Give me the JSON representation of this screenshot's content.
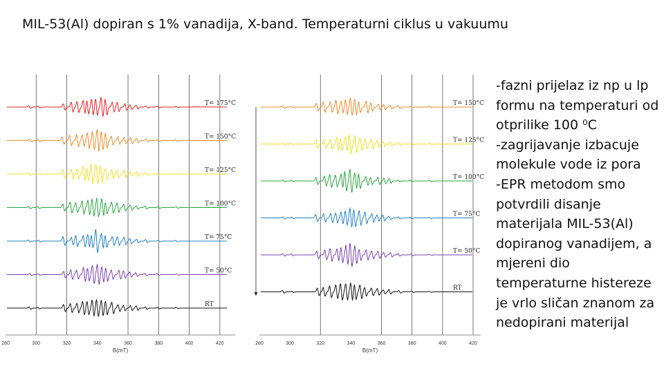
{
  "title": "MIL-53(Al) dopiran s 1% vanadija, X-band. Temperaturni ciklus u vakuumu",
  "bullets": [
    "-fazni prijelaz iz np u lp formu na temperaturi od otprilike 100 ⁰C",
    "-zagrijavanje izbacuje molekule vode iz pora",
    "-EPR metodom smo potvrdili disanje materijala MIL-53(Al) dopiranog vanadijem, a mjereni dio temperaturne histereze je vrlo sličan znanom za nedopirani materijal"
  ],
  "chart_data": [
    {
      "type": "line",
      "xlabel": "B(mT)",
      "xlim": [
        280,
        430
      ],
      "xticks": [
        "280",
        "300",
        "320",
        "340",
        "360",
        "380",
        "400",
        "420"
      ],
      "vertical_gridlines_at": [
        300,
        320,
        360,
        380,
        400,
        420
      ],
      "arrow": "up",
      "series": [
        {
          "name": "T= 175°C",
          "color": "#e02020"
        },
        {
          "name": "T= 150°C",
          "color": "#ef8a2a"
        },
        {
          "name": "T= 125°C",
          "color": "#f0e020"
        },
        {
          "name": "T= 100°C",
          "color": "#27a640"
        },
        {
          "name": "T= 75°C",
          "color": "#2080c0"
        },
        {
          "name": "T= 50°C",
          "color": "#7a3fb0"
        },
        {
          "name": "RT",
          "color": "#111111"
        }
      ]
    },
    {
      "type": "line",
      "xlabel": "B(mT)",
      "xlim": [
        280,
        425
      ],
      "xticks": [
        "280",
        "300",
        "320",
        "340",
        "360",
        "380",
        "400",
        "420"
      ],
      "vertical_gridlines_at": [
        320,
        360,
        380,
        400,
        420
      ],
      "arrow": "down",
      "series": [
        {
          "name": "T= 150°C",
          "color": "#ef8a2a"
        },
        {
          "name": "T= 125°C",
          "color": "#f0e020"
        },
        {
          "name": "T= 100°C",
          "color": "#27a640"
        },
        {
          "name": "T= 75°C",
          "color": "#2080c0"
        },
        {
          "name": "T= 50°C",
          "color": "#7a3fb0"
        },
        {
          "name": "RT",
          "color": "#111111"
        }
      ]
    }
  ]
}
